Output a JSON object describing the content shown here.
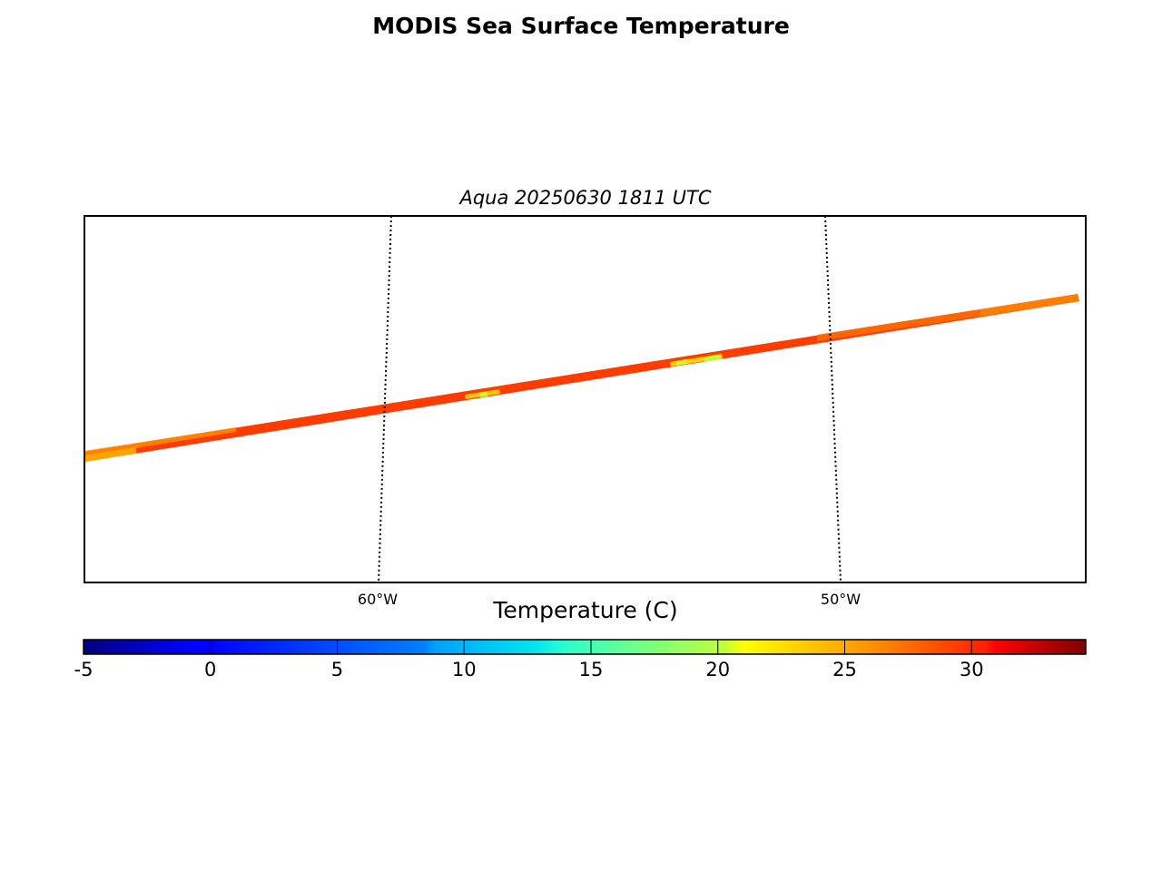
{
  "title": "MODIS Sea Surface Temperature",
  "subtitle": "Aqua 20250630 1811 UTC",
  "map": {
    "meridian_labels": [
      "60°W",
      "50°W"
    ]
  },
  "colorbar": {
    "label": "Temperature (C)",
    "colormap": "jet",
    "range": [
      -5,
      34.5
    ],
    "ticks": [
      -5,
      0,
      5,
      10,
      15,
      20,
      25,
      30
    ],
    "tick_labels": [
      "-5",
      "0",
      "5",
      "10",
      "15",
      "20",
      "25",
      "30"
    ]
  },
  "swath": {
    "dominant_temperature_c": 31,
    "warmer_band_edge_color": "#ff4000",
    "cooler_patches_c": [
      18,
      22
    ]
  }
}
